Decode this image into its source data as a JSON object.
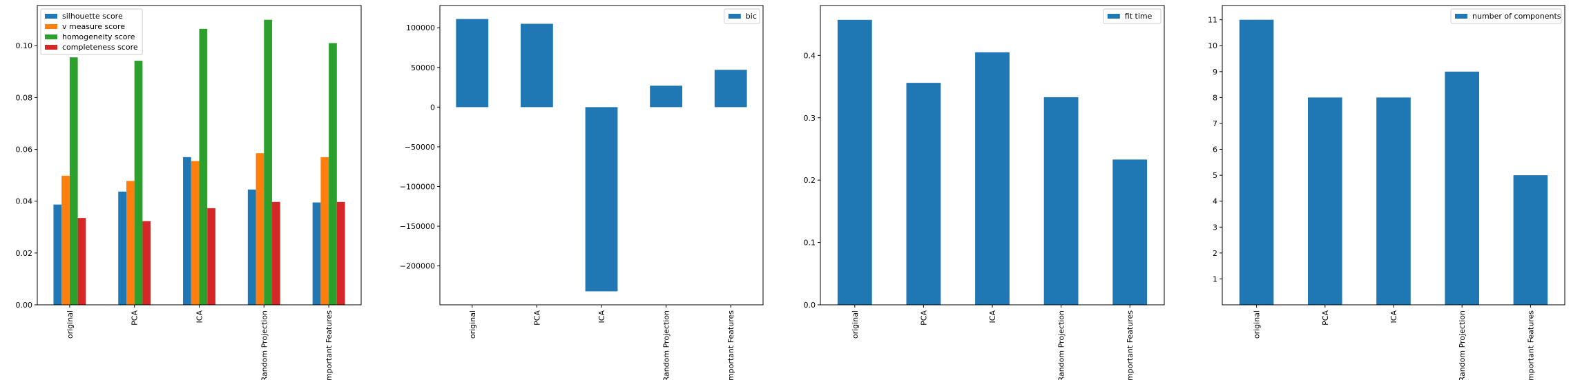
{
  "chart_data": [
    {
      "type": "bar",
      "categories": [
        "original",
        "PCA",
        "ICA",
        "Random Projection",
        "Important Features"
      ],
      "series": [
        {
          "name": "silhouette score",
          "color": "#1f77b4",
          "values": [
            0.0387,
            0.0437,
            0.057,
            0.0445,
            0.0395
          ]
        },
        {
          "name": "v measure score",
          "color": "#ff7f0e",
          "values": [
            0.0498,
            0.0478,
            0.0555,
            0.0585,
            0.057
          ]
        },
        {
          "name": "homogeneity score",
          "color": "#2ca02c",
          "values": [
            0.0955,
            0.0942,
            0.1065,
            0.11,
            0.101
          ]
        },
        {
          "name": "completeness score",
          "color": "#d62728",
          "values": [
            0.0335,
            0.0323,
            0.0373,
            0.0397,
            0.0397
          ]
        }
      ],
      "yticks": [
        0.0,
        0.02,
        0.04,
        0.06,
        0.08,
        0.1
      ],
      "ytick_labels": [
        "0.00",
        "0.02",
        "0.04",
        "0.06",
        "0.08",
        "0.10"
      ],
      "ylim": [
        0,
        0.1155
      ],
      "legend_position": "upper-left"
    },
    {
      "type": "bar",
      "categories": [
        "original",
        "PCA",
        "ICA",
        "Random Projection",
        "Important Features"
      ],
      "series": [
        {
          "name": "bic",
          "color": "#1f77b4",
          "values": [
            111000,
            105000,
            -232000,
            27000,
            47000
          ]
        }
      ],
      "yticks": [
        -200000,
        -150000,
        -100000,
        -50000,
        0,
        50000,
        100000
      ],
      "ytick_labels": [
        "−200000",
        "−150000",
        "−100000",
        "−50000",
        "0",
        "50000",
        "100000"
      ],
      "ylim": [
        -249000,
        128000
      ],
      "legend_position": "upper-right"
    },
    {
      "type": "bar",
      "categories": [
        "original",
        "PCA",
        "ICA",
        "Random Projection",
        "Important Features"
      ],
      "series": [
        {
          "name": "fit time",
          "color": "#1f77b4",
          "values": [
            0.457,
            0.356,
            0.405,
            0.333,
            0.233
          ]
        }
      ],
      "yticks": [
        0.0,
        0.1,
        0.2,
        0.3,
        0.4
      ],
      "ytick_labels": [
        "0.0",
        "0.1",
        "0.2",
        "0.3",
        "0.4"
      ],
      "ylim": [
        0,
        0.48
      ],
      "legend_position": "upper-right"
    },
    {
      "type": "bar",
      "categories": [
        "original",
        "PCA",
        "ICA",
        "Random Projection",
        "Important Features"
      ],
      "series": [
        {
          "name": "number of components",
          "color": "#1f77b4",
          "values": [
            11,
            8,
            8,
            9,
            5
          ]
        }
      ],
      "yticks": [
        1,
        2,
        3,
        4,
        5,
        6,
        7,
        8,
        9,
        10,
        11
      ],
      "ytick_labels": [
        "1",
        "2",
        "3",
        "4",
        "5",
        "6",
        "7",
        "8",
        "9",
        "10",
        "11"
      ],
      "ylim": [
        0,
        11.55
      ],
      "legend_position": "upper-right"
    }
  ]
}
